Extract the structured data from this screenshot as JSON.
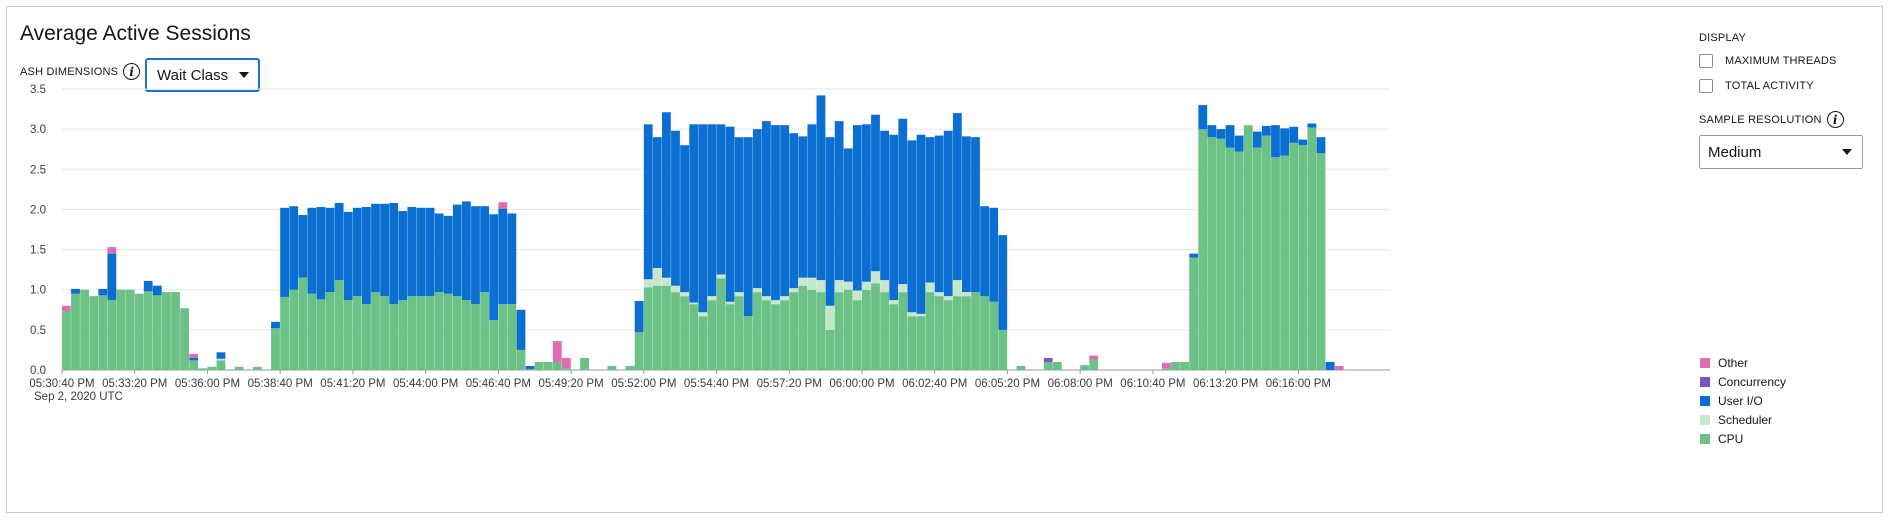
{
  "header": {
    "title": "Average Active Sessions",
    "ash_dimensions_label": "ASH DIMENSIONS",
    "info_glyph": "i",
    "dimension_select_value": "Wait Class"
  },
  "display": {
    "title": "DISPLAY",
    "checkboxes": [
      {
        "label": "MAXIMUM THREADS",
        "checked": false
      },
      {
        "label": "TOTAL ACTIVITY",
        "checked": false
      }
    ],
    "sample_resolution_label": "SAMPLE RESOLUTION",
    "sample_resolution_value": "Medium"
  },
  "colors": {
    "Other": "#e06db0",
    "Concurrency": "#7d52c7",
    "User I/O": "#0a6fd1",
    "Scheduler": "#c8e6cb",
    "CPU": "#6cc286"
  },
  "chart_data": {
    "type": "bar",
    "stacked": true,
    "title": "Average Active Sessions",
    "xlabel": "",
    "ylabel": "",
    "ylim": [
      0,
      3.5
    ],
    "yticks": [
      "0.0",
      "0.5",
      "1.0",
      "1.5",
      "2.0",
      "2.5",
      "3.0",
      "3.5"
    ],
    "x_tick_labels": [
      "05:30:40 PM",
      "05:33:20 PM",
      "05:36:00 PM",
      "05:38:40 PM",
      "05:41:20 PM",
      "05:44:00 PM",
      "05:46:40 PM",
      "05:49:20 PM",
      "05:52:00 PM",
      "05:54:40 PM",
      "05:57:20 PM",
      "06:00:00 PM",
      "06:02:40 PM",
      "06:05:20 PM",
      "06:08:00 PM",
      "06:10:40 PM",
      "06:13:20 PM",
      "06:16:00 PM"
    ],
    "x_sublabel": "Sep 2, 2020 UTC",
    "legend_position": "right",
    "series_order": [
      "CPU",
      "Scheduler",
      "User I/O",
      "Concurrency",
      "Other"
    ],
    "legend_order": [
      "Other",
      "Concurrency",
      "User I/O",
      "Scheduler",
      "CPU"
    ],
    "sample_interval_seconds": 20,
    "samples": [
      {
        "time": "05:30:40 PM",
        "CPU": 0.73,
        "User I/O": 0,
        "Other": 0.07
      },
      {
        "time": "05:31:00 PM",
        "CPU": 0.95,
        "User I/O": 0.06
      },
      {
        "time": "05:31:20 PM",
        "CPU": 1.0
      },
      {
        "time": "05:31:40 PM",
        "CPU": 0.92
      },
      {
        "time": "05:32:00 PM",
        "CPU": 0.93,
        "User I/O": 0.08
      },
      {
        "time": "05:32:20 PM",
        "CPU": 0.87,
        "User I/O": 0.58,
        "Other": 0.08
      },
      {
        "time": "05:32:40 PM",
        "CPU": 1.0
      },
      {
        "time": "05:33:00 PM",
        "CPU": 1.0
      },
      {
        "time": "05:33:20 PM",
        "CPU": 0.95
      },
      {
        "time": "05:33:40 PM",
        "CPU": 0.98,
        "User I/O": 0.13
      },
      {
        "time": "05:34:00 PM",
        "CPU": 0.93,
        "User I/O": 0.12
      },
      {
        "time": "05:34:20 PM",
        "CPU": 0.97
      },
      {
        "time": "05:34:40 PM",
        "CPU": 0.97
      },
      {
        "time": "05:35:00 PM",
        "CPU": 0.77
      },
      {
        "time": "05:35:20 PM",
        "CPU": 0.12,
        "User I/O": 0.03,
        "Other": 0.05
      },
      {
        "time": "05:35:40 PM",
        "CPU": 0.02
      },
      {
        "time": "05:36:00 PM",
        "CPU": 0.04
      },
      {
        "time": "05:36:20 PM",
        "CPU": 0.12,
        "Scheduler": 0.02,
        "User I/O": 0.08
      },
      {
        "time": "05:36:40 PM",
        "CPU": 0.0
      },
      {
        "time": "05:37:00 PM",
        "CPU": 0.04
      },
      {
        "time": "05:37:20 PM",
        "CPU": 0.0
      },
      {
        "time": "05:37:40 PM",
        "CPU": 0.04
      },
      {
        "time": "05:38:00 PM",
        "CPU": 0.0
      },
      {
        "time": "05:38:20 PM",
        "CPU": 0.52,
        "User I/O": 0.08
      },
      {
        "time": "05:38:40 PM",
        "CPU": 0.91,
        "User I/O": 1.11
      },
      {
        "time": "05:39:00 PM",
        "CPU": 1.0,
        "User I/O": 1.04
      },
      {
        "time": "05:39:20 PM",
        "CPU": 1.15,
        "User I/O": 0.78
      },
      {
        "time": "05:39:40 PM",
        "CPU": 0.95,
        "User I/O": 1.07
      },
      {
        "time": "05:40:00 PM",
        "CPU": 0.88,
        "User I/O": 1.15
      },
      {
        "time": "05:40:20 PM",
        "CPU": 0.97,
        "User I/O": 1.05
      },
      {
        "time": "05:40:40 PM",
        "CPU": 1.12,
        "User I/O": 0.96
      },
      {
        "time": "05:41:00 PM",
        "CPU": 0.87,
        "User I/O": 1.1
      },
      {
        "time": "05:41:20 PM",
        "CPU": 0.92,
        "User I/O": 1.1
      },
      {
        "time": "05:41:40 PM",
        "CPU": 0.82,
        "User I/O": 1.21
      },
      {
        "time": "05:42:00 PM",
        "CPU": 0.97,
        "User I/O": 1.1
      },
      {
        "time": "05:42:20 PM",
        "CPU": 0.92,
        "User I/O": 1.15
      },
      {
        "time": "05:42:40 PM",
        "CPU": 0.82,
        "User I/O": 1.26
      },
      {
        "time": "05:43:00 PM",
        "CPU": 0.87,
        "User I/O": 1.11
      },
      {
        "time": "05:43:20 PM",
        "CPU": 0.92,
        "User I/O": 1.11
      },
      {
        "time": "05:43:40 PM",
        "CPU": 0.92,
        "User I/O": 1.1
      },
      {
        "time": "05:44:00 PM",
        "CPU": 0.92,
        "User I/O": 1.1
      },
      {
        "time": "05:44:20 PM",
        "CPU": 0.97,
        "User I/O": 0.98
      },
      {
        "time": "05:44:40 PM",
        "CPU": 0.95,
        "User I/O": 0.97
      },
      {
        "time": "05:45:00 PM",
        "CPU": 0.92,
        "User I/O": 1.14
      },
      {
        "time": "05:45:20 PM",
        "CPU": 0.87,
        "User I/O": 1.23
      },
      {
        "time": "05:45:40 PM",
        "CPU": 0.82,
        "User I/O": 1.22
      },
      {
        "time": "05:46:00 PM",
        "CPU": 0.97,
        "User I/O": 1.07
      },
      {
        "time": "05:46:20 PM",
        "CPU": 0.62,
        "User I/O": 1.32
      },
      {
        "time": "05:46:40 PM",
        "CPU": 0.82,
        "User I/O": 1.19,
        "Other": 0.08
      },
      {
        "time": "05:47:00 PM",
        "CPU": 0.82,
        "User I/O": 1.13
      },
      {
        "time": "05:47:20 PM",
        "CPU": 0.25,
        "User I/O": 0.5
      },
      {
        "time": "05:47:40 PM",
        "CPU": 0.01,
        "User I/O": 0.04
      },
      {
        "time": "05:48:00 PM",
        "CPU": 0.1
      },
      {
        "time": "05:48:20 PM",
        "CPU": 0.1
      },
      {
        "time": "05:48:40 PM",
        "CPU": 0.1,
        "Other": 0.26
      },
      {
        "time": "05:49:00 PM",
        "CPU": 0.02,
        "Other": 0.13
      },
      {
        "time": "05:49:20 PM",
        "CPU": 0.0
      },
      {
        "time": "05:49:40 PM",
        "CPU": 0.15
      },
      {
        "time": "05:50:00 PM",
        "CPU": 0.0
      },
      {
        "time": "05:50:20 PM",
        "CPU": 0.0
      },
      {
        "time": "05:50:40 PM",
        "CPU": 0.05
      },
      {
        "time": "05:51:00 PM",
        "CPU": 0.0
      },
      {
        "time": "05:51:20 PM",
        "CPU": 0.05
      },
      {
        "time": "05:51:40 PM",
        "CPU": 0.47,
        "User I/O": 0.39
      },
      {
        "time": "05:52:00 PM",
        "CPU": 1.03,
        "Scheduler": 0.1,
        "User I/O": 1.93
      },
      {
        "time": "05:52:20 PM",
        "CPU": 1.05,
        "Scheduler": 0.22,
        "User I/O": 1.63
      },
      {
        "time": "05:52:40 PM",
        "CPU": 1.05,
        "Scheduler": 0.1,
        "User I/O": 2.06
      },
      {
        "time": "05:53:00 PM",
        "CPU": 0.97,
        "Scheduler": 0.08,
        "User I/O": 1.93
      },
      {
        "time": "05:53:20 PM",
        "CPU": 0.92,
        "Scheduler": 0.05,
        "User I/O": 1.83
      },
      {
        "time": "05:53:40 PM",
        "CPU": 0.82,
        "Scheduler": 0.02,
        "User I/O": 2.22
      },
      {
        "time": "05:54:00 PM",
        "CPU": 0.67,
        "Scheduler": 0.05,
        "User I/O": 2.34
      },
      {
        "time": "05:54:20 PM",
        "CPU": 0.87,
        "Scheduler": 0.05,
        "User I/O": 2.14
      },
      {
        "time": "05:54:40 PM",
        "CPU": 1.14,
        "Scheduler": 0.05,
        "User I/O": 1.87
      },
      {
        "time": "05:55:00 PM",
        "CPU": 0.82,
        "Scheduler": 0.03,
        "User I/O": 2.18
      },
      {
        "time": "05:55:20 PM",
        "CPU": 0.92,
        "Scheduler": 0.05,
        "User I/O": 1.93
      },
      {
        "time": "05:55:40 PM",
        "CPU": 0.67,
        "User I/O": 2.23
      },
      {
        "time": "05:56:00 PM",
        "CPU": 0.97,
        "Scheduler": 0.05,
        "User I/O": 1.98
      },
      {
        "time": "05:56:20 PM",
        "CPU": 0.87,
        "Scheduler": 0.05,
        "User I/O": 2.18
      },
      {
        "time": "05:56:40 PM",
        "CPU": 0.82,
        "Scheduler": 0.05,
        "User I/O": 2.18
      },
      {
        "time": "05:57:00 PM",
        "CPU": 0.87,
        "Scheduler": 0.05,
        "User I/O": 2.13
      },
      {
        "time": "05:57:20 PM",
        "CPU": 0.97,
        "Scheduler": 0.05,
        "User I/O": 1.93
      },
      {
        "time": "05:57:40 PM",
        "CPU": 1.05,
        "Scheduler": 0.1,
        "User I/O": 1.76
      },
      {
        "time": "05:58:00 PM",
        "CPU": 1.0,
        "Scheduler": 0.15,
        "User I/O": 1.91
      },
      {
        "time": "05:58:20 PM",
        "CPU": 0.97,
        "Scheduler": 0.15,
        "User I/O": 2.3
      },
      {
        "time": "05:58:40 PM",
        "CPU": 0.5,
        "Scheduler": 0.3,
        "User I/O": 2.1
      },
      {
        "time": "05:59:00 PM",
        "CPU": 0.97,
        "Scheduler": 0.15,
        "User I/O": 1.98
      },
      {
        "time": "05:59:20 PM",
        "CPU": 1.0,
        "Scheduler": 0.1,
        "User I/O": 1.66
      },
      {
        "time": "05:59:40 PM",
        "CPU": 0.87,
        "Scheduler": 0.12,
        "User I/O": 2.06
      },
      {
        "time": "06:00:00 PM",
        "CPU": 1.0,
        "Scheduler": 0.1,
        "User I/O": 1.96
      },
      {
        "time": "06:00:20 PM",
        "CPU": 1.08,
        "Scheduler": 0.15,
        "User I/O": 1.95
      },
      {
        "time": "06:00:40 PM",
        "CPU": 0.97,
        "Scheduler": 0.15,
        "User I/O": 1.86
      },
      {
        "time": "06:01:00 PM",
        "CPU": 0.82,
        "Scheduler": 0.05,
        "User I/O": 2.06
      },
      {
        "time": "06:01:20 PM",
        "CPU": 0.97,
        "Scheduler": 0.1,
        "User I/O": 2.06
      },
      {
        "time": "06:01:40 PM",
        "CPU": 0.67,
        "Scheduler": 0.05,
        "User I/O": 2.14
      },
      {
        "time": "06:02:00 PM",
        "CPU": 0.67,
        "Scheduler": 0.03,
        "User I/O": 2.23
      },
      {
        "time": "06:02:20 PM",
        "CPU": 0.97,
        "Scheduler": 0.12,
        "User I/O": 1.81
      },
      {
        "time": "06:02:40 PM",
        "CPU": 0.92,
        "Scheduler": 0.05,
        "User I/O": 1.95
      },
      {
        "time": "06:03:00 PM",
        "CPU": 0.87,
        "Scheduler": 0.05,
        "User I/O": 2.06
      },
      {
        "time": "06:03:20 PM",
        "CPU": 0.92,
        "Scheduler": 0.2,
        "User I/O": 2.08
      },
      {
        "time": "06:03:40 PM",
        "CPU": 0.92,
        "Scheduler": 0.05,
        "User I/O": 1.94
      },
      {
        "time": "06:04:00 PM",
        "CPU": 0.97,
        "User I/O": 1.93
      },
      {
        "time": "06:04:20 PM",
        "CPU": 0.92,
        "User I/O": 1.12
      },
      {
        "time": "06:04:40 PM",
        "CPU": 0.85,
        "User I/O": 1.17
      },
      {
        "time": "06:05:00 PM",
        "CPU": 0.5,
        "User I/O": 1.18
      },
      {
        "time": "06:05:20 PM",
        "CPU": 0.0
      },
      {
        "time": "06:05:40 PM",
        "CPU": 0.05
      },
      {
        "time": "06:06:00 PM",
        "CPU": 0.0
      },
      {
        "time": "06:06:20 PM",
        "CPU": 0.0
      },
      {
        "time": "06:06:40 PM",
        "CPU": 0.1,
        "Concurrency": 0.05
      },
      {
        "time": "06:07:00 PM",
        "CPU": 0.1
      },
      {
        "time": "06:07:20 PM",
        "CPU": 0.0
      },
      {
        "time": "06:07:40 PM",
        "CPU": 0.0
      },
      {
        "time": "06:08:00 PM",
        "CPU": 0.06
      },
      {
        "time": "06:08:20 PM",
        "CPU": 0.13,
        "Other": 0.05
      },
      {
        "time": "06:08:40 PM",
        "CPU": 0.0
      },
      {
        "time": "06:09:00 PM",
        "CPU": 0.0
      },
      {
        "time": "06:09:20 PM",
        "CPU": 0.0
      },
      {
        "time": "06:09:40 PM",
        "CPU": 0.0
      },
      {
        "time": "06:10:00 PM",
        "CPU": 0.0
      },
      {
        "time": "06:10:20 PM",
        "CPU": 0.0
      },
      {
        "time": "06:10:40 PM",
        "CPU": 0.0
      },
      {
        "time": "06:11:00 PM",
        "CPU": 0.02,
        "Other": 0.07
      },
      {
        "time": "06:11:20 PM",
        "CPU": 0.1
      },
      {
        "time": "06:11:40 PM",
        "CPU": 0.1
      },
      {
        "time": "06:12:00 PM",
        "CPU": 1.4,
        "User I/O": 0.05
      },
      {
        "time": "06:12:20 PM",
        "CPU": 3.0,
        "User I/O": 0.3
      },
      {
        "time": "06:12:40 PM",
        "CPU": 2.9,
        "User I/O": 0.15
      },
      {
        "time": "06:13:00 PM",
        "CPU": 2.88,
        "User I/O": 0.12
      },
      {
        "time": "06:13:20 PM",
        "CPU": 2.77,
        "User I/O": 0.28
      },
      {
        "time": "06:13:40 PM",
        "CPU": 2.72,
        "User I/O": 0.2
      },
      {
        "time": "06:14:00 PM",
        "CPU": 3.05
      },
      {
        "time": "06:14:20 PM",
        "CPU": 2.77,
        "User I/O": 0.2
      },
      {
        "time": "06:14:40 PM",
        "CPU": 2.92,
        "User I/O": 0.12
      },
      {
        "time": "06:15:00 PM",
        "CPU": 2.65,
        "User I/O": 0.4
      },
      {
        "time": "06:15:20 PM",
        "CPU": 2.67,
        "User I/O": 0.34
      },
      {
        "time": "06:15:40 PM",
        "CPU": 2.83,
        "User I/O": 0.2
      },
      {
        "time": "06:16:00 PM",
        "CPU": 2.8,
        "User I/O": 0.07
      },
      {
        "time": "06:16:20 PM",
        "CPU": 3.02,
        "User I/O": 0.05
      },
      {
        "time": "06:16:40 PM",
        "CPU": 2.7,
        "User I/O": 0.2
      },
      {
        "time": "06:17:00 PM",
        "CPU": 0.0,
        "User I/O": 0.1
      },
      {
        "time": "06:17:20 PM",
        "CPU": 0.0,
        "Other": 0.05
      }
    ]
  }
}
